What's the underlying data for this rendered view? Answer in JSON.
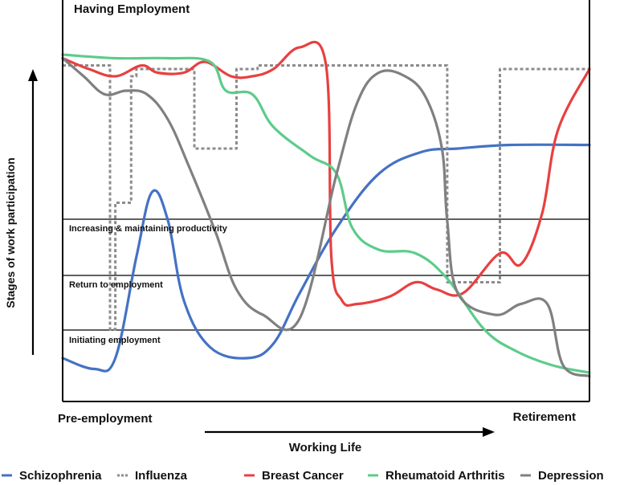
{
  "chart_data": {
    "type": "line",
    "title": "",
    "corner_labels": {
      "top": "Having Employment",
      "bottom_left": "Pre-employment",
      "bottom_right": "Retirement"
    },
    "xlabel": "Working Life",
    "ylabel": "Stages of work participation",
    "stages": [
      {
        "label": "Increasing & maintaining productivity"
      },
      {
        "label": "Return to employment"
      },
      {
        "label": "Initiating employment"
      }
    ],
    "series": [
      {
        "name": "Schizophrenia",
        "color": "#4472c4",
        "style": "solid",
        "x": [
          0,
          6,
          10,
          14,
          17,
          20,
          23,
          28,
          35,
          40,
          45,
          52,
          60,
          68,
          75,
          85,
          100
        ],
        "y": [
          12,
          9,
          12,
          40,
          58,
          50,
          28,
          15,
          12,
          16,
          30,
          48,
          63,
          69,
          70,
          71,
          71
        ]
      },
      {
        "name": "Influenza",
        "color": "#8c8c8c",
        "style": "dotted",
        "x": [
          0,
          9,
          9,
          10,
          10,
          13,
          13,
          14,
          14,
          25,
          25,
          33,
          33,
          37,
          37,
          73,
          73,
          83,
          83,
          100
        ],
        "y": [
          93,
          93,
          20,
          20,
          55,
          55,
          90,
          90,
          92,
          92,
          70,
          70,
          92,
          92,
          93,
          93,
          33,
          33,
          92,
          92
        ]
      },
      {
        "name": "Breast Cancer",
        "color": "#e84040",
        "style": "solid",
        "x": [
          0,
          5,
          10,
          15,
          18,
          23,
          27,
          32,
          36,
          40,
          45,
          50,
          51,
          53,
          56,
          62,
          67,
          71,
          76,
          83,
          87,
          91,
          94,
          100
        ],
        "y": [
          95,
          92,
          90,
          93,
          91,
          91,
          94,
          90,
          90,
          92,
          98,
          93,
          40,
          28,
          27,
          29,
          33,
          31,
          30,
          41,
          38,
          52,
          75,
          92
        ]
      },
      {
        "name": "Rheumatoid Arthritis",
        "color": "#5ccc8a",
        "style": "solid",
        "x": [
          0,
          10,
          20,
          28,
          31,
          36,
          40,
          47,
          52,
          55,
          60,
          67,
          73,
          80,
          86,
          93,
          100
        ],
        "y": [
          96,
          95,
          95,
          94,
          86,
          85,
          76,
          68,
          63,
          48,
          42,
          41,
          34,
          20,
          14,
          10,
          8
        ]
      },
      {
        "name": "Depression",
        "color": "#808080",
        "style": "solid",
        "x": [
          0,
          4,
          8,
          12,
          16,
          20,
          24,
          29,
          33,
          38,
          45,
          52,
          56,
          60,
          65,
          69,
          72,
          73,
          75,
          82,
          87,
          92,
          95,
          100
        ],
        "y": [
          95,
          90,
          85,
          86,
          85,
          78,
          65,
          47,
          31,
          24,
          23,
          63,
          83,
          91,
          90,
          84,
          70,
          50,
          30,
          24,
          27,
          27,
          10,
          7
        ]
      }
    ],
    "xlim": [
      0,
      100
    ],
    "ylim": [
      0,
      110
    ],
    "grid": false,
    "legend_position": "bottom"
  }
}
